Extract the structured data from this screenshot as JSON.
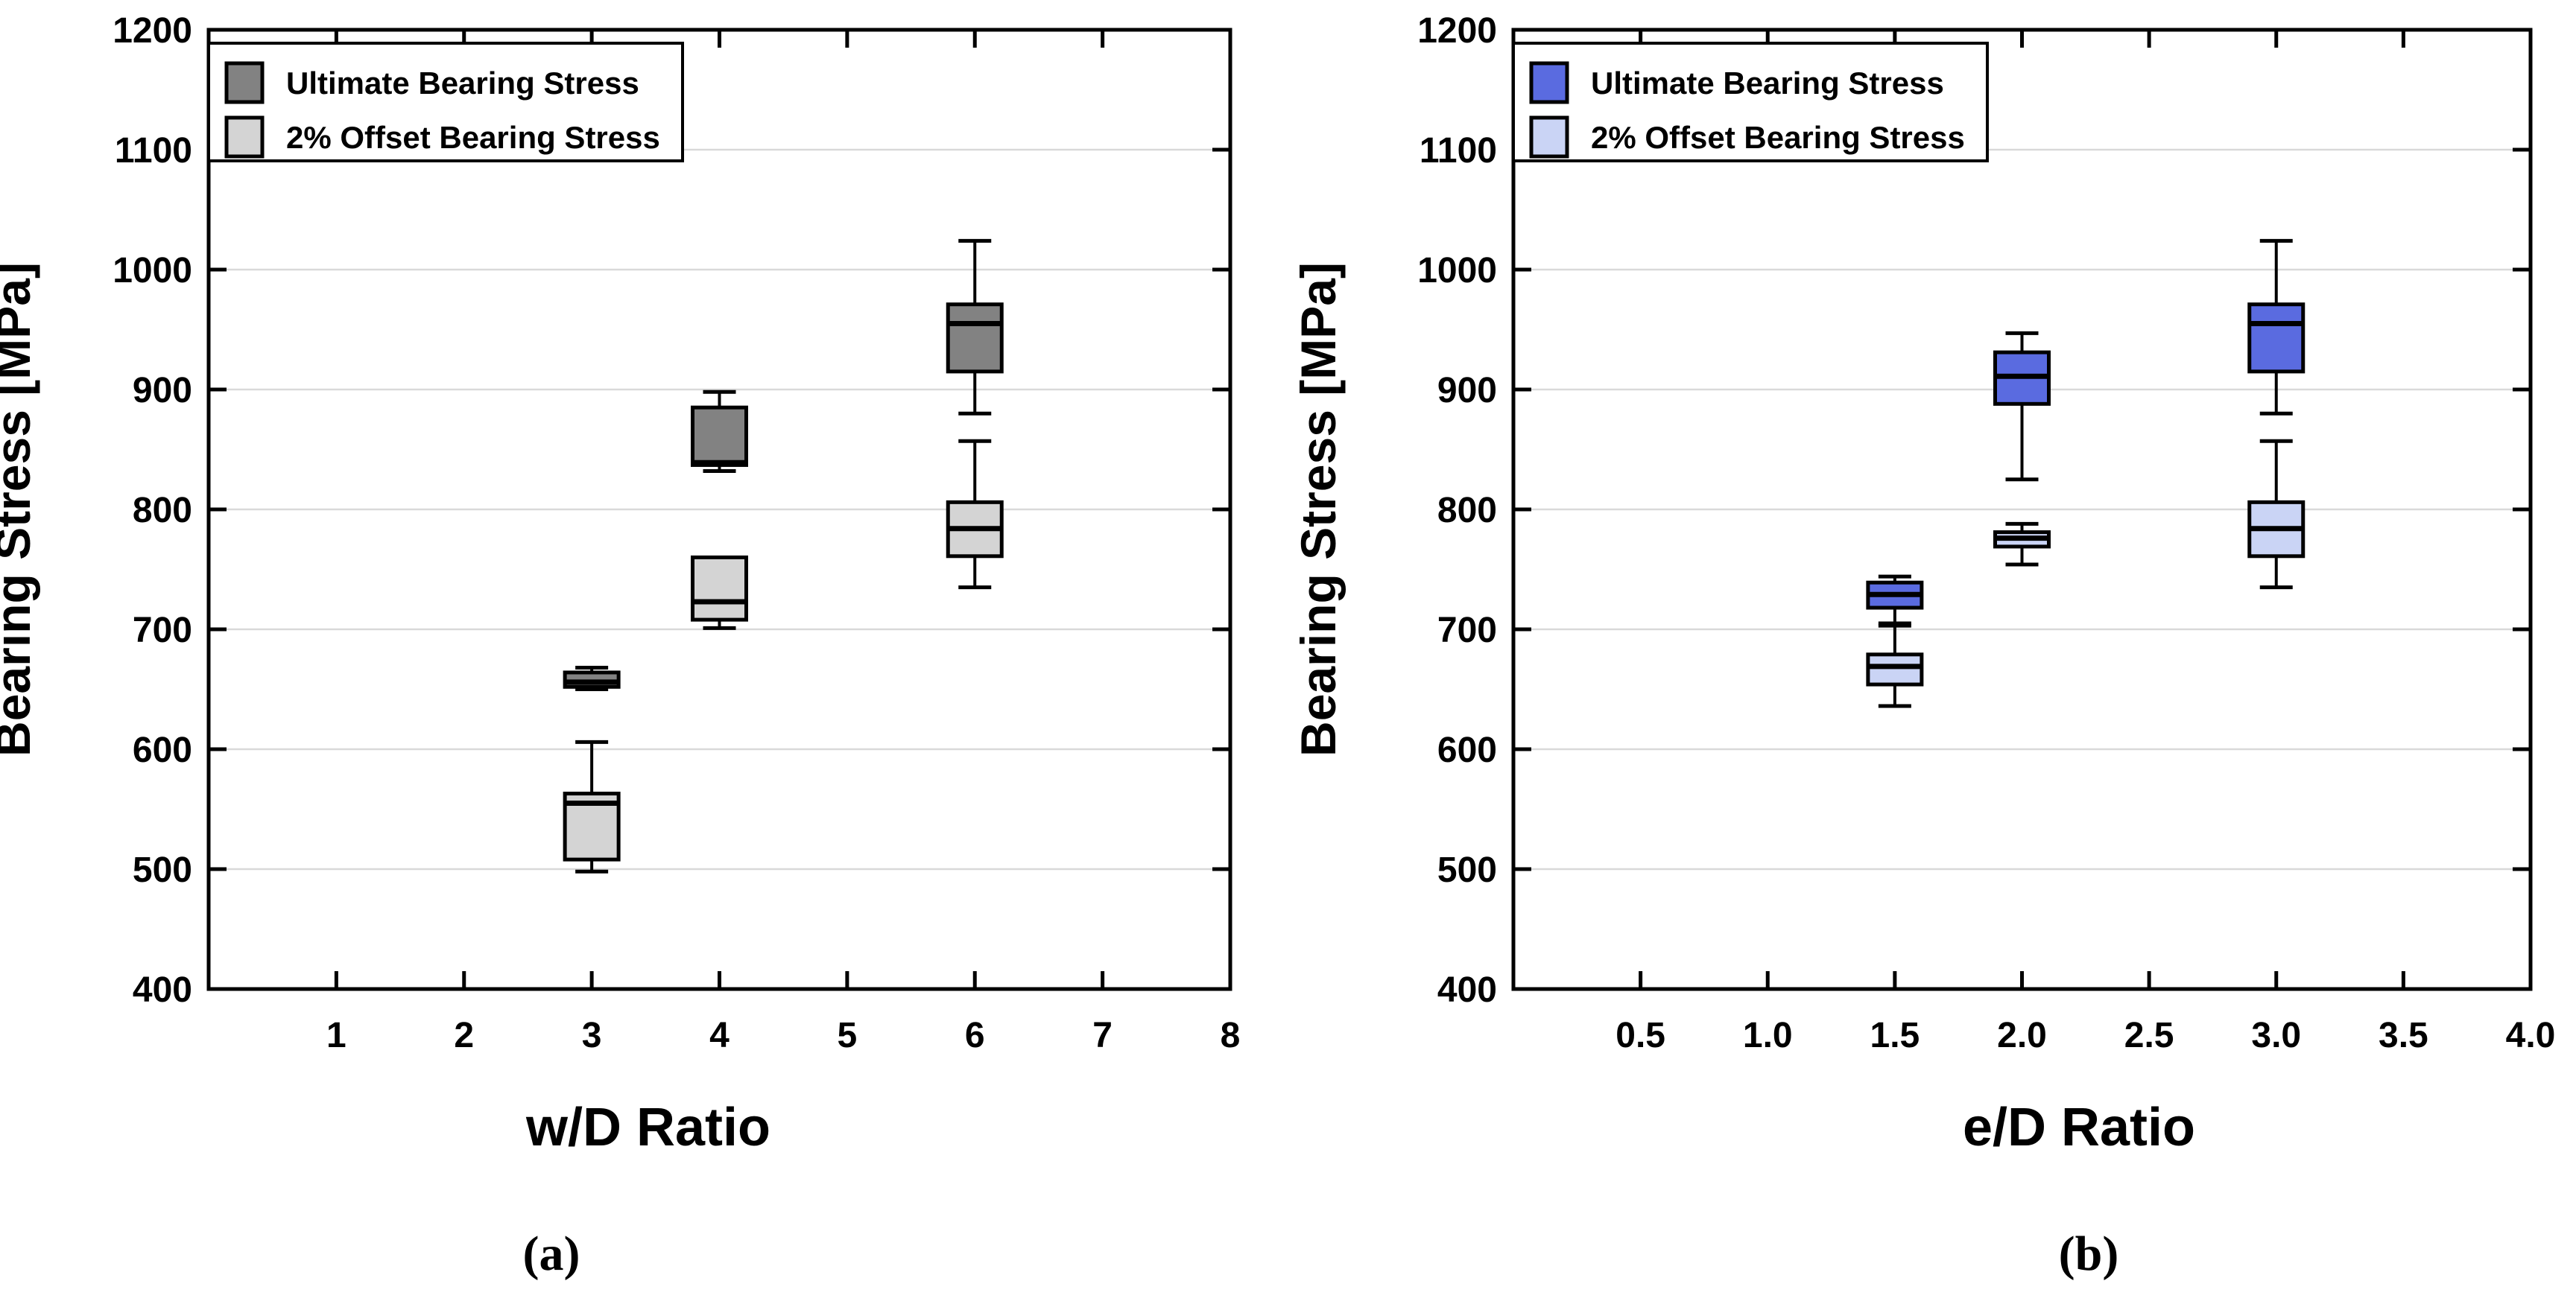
{
  "figure": {
    "background": "#ffffff",
    "frame_color": "#000000",
    "grid_color": "#d9d9d9",
    "tick_label_color": "#000000"
  },
  "chart_data": [
    {
      "type": "boxplot",
      "id": "a",
      "caption": "(a)",
      "xlabel": "w/D Ratio",
      "ylabel": "Bearing Stress [MPa]",
      "xlim": [
        0,
        8
      ],
      "xtick_values": [
        1,
        2,
        3,
        4,
        5,
        6,
        7,
        8
      ],
      "xtick_labels": [
        "1",
        "2",
        "3",
        "4",
        "5",
        "6",
        "7",
        "8"
      ],
      "ylim": [
        400,
        1200
      ],
      "ytick_values": [
        400,
        500,
        600,
        700,
        800,
        900,
        1000,
        1100,
        1200
      ],
      "ytick_labels": [
        "400",
        "500",
        "600",
        "700",
        "800",
        "900",
        "1000",
        "1100",
        "1200"
      ],
      "gridline_values": [
        500,
        600,
        700,
        800,
        900,
        1000,
        1100
      ],
      "grid": true,
      "legend_position": "top-left",
      "legend": [
        {
          "label": "Ultimate Bearing Stress",
          "swatch": "#828282"
        },
        {
          "label": "2% Offset Bearing Stress",
          "swatch": "#d4d4d4"
        }
      ],
      "series": [
        {
          "name": "Ultimate Bearing Stress",
          "fill": "#828282",
          "boxes": [
            {
              "x": 3,
              "whisker_low": 650,
              "q1": 652,
              "median": 656,
              "q3": 664,
              "whisker_high": 668
            },
            {
              "x": 4,
              "whisker_low": 832,
              "q1": 837,
              "median": 839,
              "q3": 885,
              "whisker_high": 898
            },
            {
              "x": 6,
              "whisker_low": 880,
              "q1": 915,
              "median": 955,
              "q3": 971,
              "whisker_high": 1024
            }
          ]
        },
        {
          "name": "2% Offset Bearing Stress",
          "fill": "#d4d4d4",
          "boxes": [
            {
              "x": 3,
              "whisker_low": 498,
              "q1": 508,
              "median": 555,
              "q3": 563,
              "whisker_high": 606
            },
            {
              "x": 4,
              "whisker_low": 701,
              "q1": 708,
              "median": 723,
              "q3": 760,
              "whisker_high": 760
            },
            {
              "x": 6,
              "whisker_low": 735,
              "q1": 761,
              "median": 784,
              "q3": 806,
              "whisker_high": 857
            }
          ]
        }
      ]
    },
    {
      "type": "boxplot",
      "id": "b",
      "caption": "(b)",
      "xlabel": "e/D Ratio",
      "ylabel": "Bearing Stress [MPa]",
      "xlim": [
        0,
        4
      ],
      "xtick_values": [
        0.5,
        1.0,
        1.5,
        2.0,
        2.5,
        3.0,
        3.5,
        4.0
      ],
      "xtick_labels": [
        "0.5",
        "1.0",
        "1.5",
        "2.0",
        "2.5",
        "3.0",
        "3.5",
        "4.0"
      ],
      "ylim": [
        400,
        1200
      ],
      "ytick_values": [
        400,
        500,
        600,
        700,
        800,
        900,
        1000,
        1100,
        1200
      ],
      "ytick_labels": [
        "400",
        "500",
        "600",
        "700",
        "800",
        "900",
        "1000",
        "1100",
        "1200"
      ],
      "gridline_values": [
        500,
        600,
        700,
        800,
        900,
        1000,
        1100
      ],
      "grid": true,
      "legend_position": "top-left",
      "legend": [
        {
          "label": "Ultimate Bearing Stress",
          "swatch": "#5a6be0"
        },
        {
          "label": "2% Offset Bearing Stress",
          "swatch": "#cad4f5"
        }
      ],
      "series": [
        {
          "name": "Ultimate Bearing Stress",
          "fill": "#5a6be0",
          "boxes": [
            {
              "x": 1.5,
              "whisker_low": 705,
              "q1": 718,
              "median": 729,
              "q3": 739,
              "whisker_high": 744
            },
            {
              "x": 2.0,
              "whisker_low": 825,
              "q1": 888,
              "median": 911,
              "q3": 931,
              "whisker_high": 947
            },
            {
              "x": 3.0,
              "whisker_low": 880,
              "q1": 915,
              "median": 955,
              "q3": 971,
              "whisker_high": 1024
            }
          ]
        },
        {
          "name": "2% Offset Bearing Stress",
          "fill": "#cad4f5",
          "boxes": [
            {
              "x": 1.5,
              "whisker_low": 636,
              "q1": 654,
              "median": 669,
              "q3": 679,
              "whisker_high": 703
            },
            {
              "x": 2.0,
              "whisker_low": 754,
              "q1": 769,
              "median": 776,
              "q3": 781,
              "whisker_high": 788
            },
            {
              "x": 3.0,
              "whisker_low": 735,
              "q1": 761,
              "median": 784,
              "q3": 806,
              "whisker_high": 857
            }
          ]
        }
      ]
    }
  ]
}
